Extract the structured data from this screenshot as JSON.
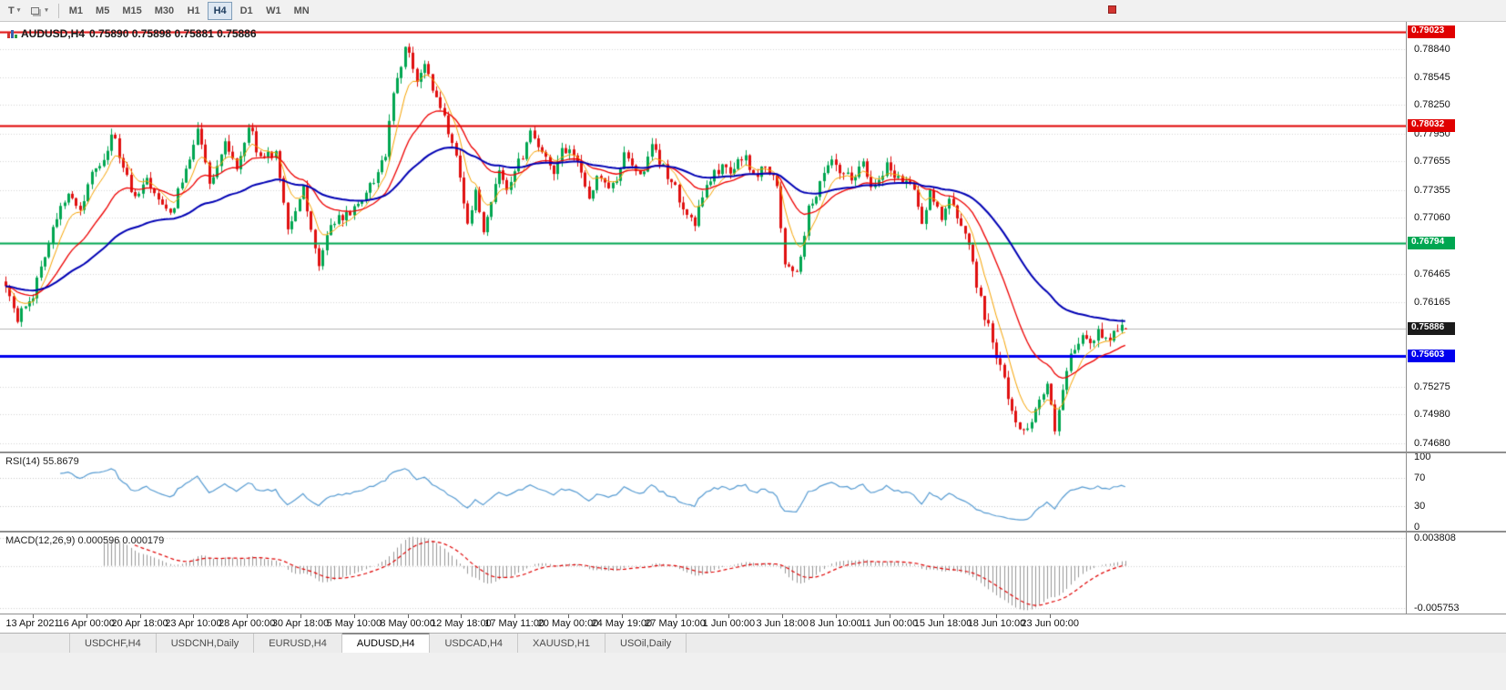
{
  "toolbar": {
    "template_button": "T",
    "timeframes": [
      "M1",
      "M5",
      "M15",
      "M30",
      "H1",
      "H4",
      "D1",
      "W1",
      "MN"
    ],
    "active_timeframe": "H4"
  },
  "chart": {
    "symbol": "AUDUSD,H4",
    "ohlc_text": "0.75890 0.75898 0.75881 0.75886",
    "price_axis_labels": [
      "0.78840",
      "0.78545",
      "0.78250",
      "0.77950",
      "0.77655",
      "0.77355",
      "0.77060",
      "0.76465",
      "0.76165",
      "0.75275",
      "0.74980",
      "0.74680"
    ],
    "levels": [
      {
        "value": 0.79023,
        "label": "0.79023",
        "color": "#e00000",
        "width": 2
      },
      {
        "value": 0.78032,
        "label": "0.78032",
        "color": "#e00000",
        "width": 2
      },
      {
        "value": 0.76794,
        "label": "0.76794",
        "color": "#00a651",
        "width": 2
      },
      {
        "value": 0.75603,
        "label": "0.75603",
        "color": "#0000ee",
        "width": 3
      }
    ],
    "current_price_tag": {
      "value": 0.75886,
      "label": "0.75886",
      "bg": "#1a1a1a"
    }
  },
  "rsi_panel": {
    "label": "RSI(14) 55.8679",
    "current": 55.8679,
    "axis_labels": [
      "100",
      "70",
      "30",
      "0"
    ],
    "guide_levels": [
      70,
      30
    ]
  },
  "macd_panel": {
    "label": "MACD(12,26,9) 0.000596 0.000179",
    "macd_value": 0.000596,
    "signal_value": 0.000179,
    "axis_top": "0.003808",
    "axis_bottom": "-0.005753"
  },
  "time_axis": {
    "labels": [
      "13 Apr 2021",
      "16 Apr 00:00",
      "20 Apr 18:00",
      "23 Apr 10:00",
      "28 Apr 00:00",
      "30 Apr 18:00",
      "5 May 10:00",
      "8 May 00:00",
      "12 May 18:00",
      "17 May 11:00",
      "20 May 00:00",
      "24 May 19:00",
      "27 May 10:00",
      "1 Jun 00:00",
      "3 Jun 18:00",
      "8 Jun 10:00",
      "11 Jun 00:00",
      "15 Jun 18:00",
      "18 Jun 10:00",
      "23 Jun 00:00"
    ]
  },
  "tab_bar": {
    "tabs": [
      "USDCHF,H4",
      "USDCNH,Daily",
      "EURUSD,H4",
      "AUDUSD,H4",
      "USDCAD,H4",
      "XAUUSD,H1",
      "USOil,Daily"
    ],
    "active": "AUDUSD,H4"
  },
  "chart_data": {
    "type": "candlestick",
    "symbol": "AUDUSD",
    "timeframe": "H4",
    "bars": 287,
    "price_range": [
      0.7459,
      0.7913
    ],
    "last_ohlc": {
      "open": 0.7589,
      "high": 0.75898,
      "low": 0.75881,
      "close": 0.75886
    },
    "hlines": [
      0.79023,
      0.78032,
      0.76794,
      0.75603
    ],
    "close_anchors": [
      [
        0,
        0.7638
      ],
      [
        3,
        0.7598
      ],
      [
        7,
        0.7626
      ],
      [
        13,
        0.7708
      ],
      [
        16,
        0.7736
      ],
      [
        19,
        0.7714
      ],
      [
        22,
        0.7752
      ],
      [
        25,
        0.7762
      ],
      [
        27,
        0.7798
      ],
      [
        30,
        0.7758
      ],
      [
        33,
        0.7726
      ],
      [
        36,
        0.7748
      ],
      [
        40,
        0.7722
      ],
      [
        42,
        0.7706
      ],
      [
        45,
        0.7746
      ],
      [
        49,
        0.7799
      ],
      [
        52,
        0.7744
      ],
      [
        56,
        0.7782
      ],
      [
        59,
        0.7756
      ],
      [
        62,
        0.7805
      ],
      [
        65,
        0.7768
      ],
      [
        69,
        0.7776
      ],
      [
        72,
        0.7696
      ],
      [
        76,
        0.7736
      ],
      [
        80,
        0.7658
      ],
      [
        83,
        0.77
      ],
      [
        88,
        0.7712
      ],
      [
        92,
        0.7731
      ],
      [
        97,
        0.7772
      ],
      [
        99,
        0.7834
      ],
      [
        102,
        0.7889
      ],
      [
        105,
        0.7852
      ],
      [
        107,
        0.7867
      ],
      [
        110,
        0.7832
      ],
      [
        113,
        0.7799
      ],
      [
        115,
        0.7768
      ],
      [
        118,
        0.7701
      ],
      [
        120,
        0.7731
      ],
      [
        122,
        0.7693
      ],
      [
        126,
        0.7752
      ],
      [
        128,
        0.7739
      ],
      [
        132,
        0.7772
      ],
      [
        134,
        0.7802
      ],
      [
        136,
        0.7782
      ],
      [
        140,
        0.7749
      ],
      [
        142,
        0.7778
      ],
      [
        146,
        0.7768
      ],
      [
        149,
        0.7728
      ],
      [
        151,
        0.7748
      ],
      [
        155,
        0.7739
      ],
      [
        158,
        0.7772
      ],
      [
        162,
        0.7749
      ],
      [
        165,
        0.7779
      ],
      [
        169,
        0.7752
      ],
      [
        172,
        0.7727
      ],
      [
        176,
        0.7699
      ],
      [
        179,
        0.7742
      ],
      [
        183,
        0.7761
      ],
      [
        185,
        0.7757
      ],
      [
        189,
        0.7771
      ],
      [
        191,
        0.7748
      ],
      [
        194,
        0.7762
      ],
      [
        197,
        0.7739
      ],
      [
        199,
        0.7654
      ],
      [
        202,
        0.7645
      ],
      [
        205,
        0.7714
      ],
      [
        208,
        0.7742
      ],
      [
        211,
        0.7764
      ],
      [
        213,
        0.7752
      ],
      [
        216,
        0.7747
      ],
      [
        219,
        0.7764
      ],
      [
        221,
        0.7739
      ],
      [
        225,
        0.7761
      ],
      [
        228,
        0.7748
      ],
      [
        232,
        0.7739
      ],
      [
        234,
        0.7699
      ],
      [
        236,
        0.7731
      ],
      [
        239,
        0.7709
      ],
      [
        241,
        0.7726
      ],
      [
        243,
        0.7703
      ],
      [
        246,
        0.7682
      ],
      [
        248,
        0.7634
      ],
      [
        250,
        0.7603
      ],
      [
        253,
        0.7563
      ],
      [
        255,
        0.7533
      ],
      [
        257,
        0.7503
      ],
      [
        259,
        0.7479
      ],
      [
        262,
        0.7493
      ],
      [
        264,
        0.7513
      ],
      [
        266,
        0.7529
      ],
      [
        268,
        0.7479
      ],
      [
        270,
        0.7523
      ],
      [
        272,
        0.7558
      ],
      [
        275,
        0.7581
      ],
      [
        277,
        0.7571
      ],
      [
        279,
        0.7585
      ],
      [
        282,
        0.7579
      ],
      [
        284,
        0.7591
      ],
      [
        286,
        0.75886
      ]
    ],
    "overlays": [
      {
        "name": "ema-fast",
        "period": 7,
        "color": "#f7a300"
      },
      {
        "name": "ema-mid",
        "period": 21,
        "color": "#ee0000"
      },
      {
        "name": "ema-slow",
        "period": 55,
        "color": "#0000b4"
      }
    ],
    "indicators": [
      {
        "name": "RSI",
        "period": 14,
        "current": 55.8679,
        "range": [
          0,
          100
        ]
      },
      {
        "name": "MACD",
        "params": "12,26,9",
        "macd": 0.000596,
        "signal": 0.000179,
        "scale_max": 0.003808,
        "scale_min": -0.005753
      }
    ],
    "colors": {
      "up": "#00a651",
      "down": "#e01010",
      "background": "#ffffff",
      "grid": "#d6d6d6"
    }
  }
}
